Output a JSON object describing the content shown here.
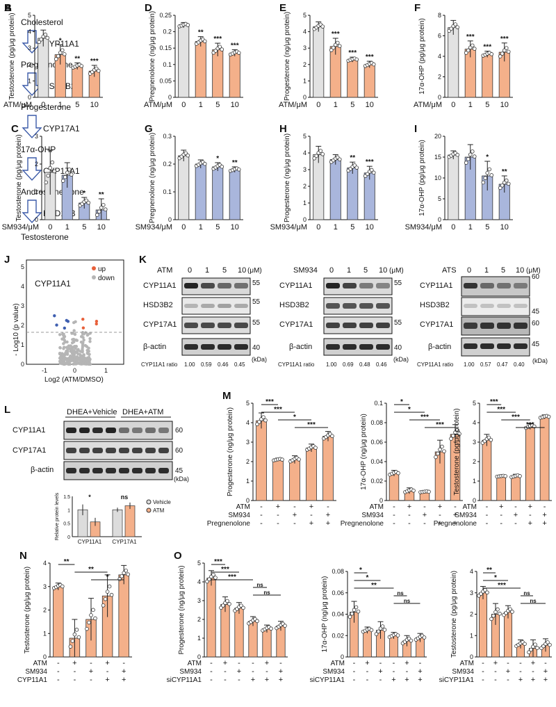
{
  "figure": {
    "pathway": {
      "label": "A",
      "steps": [
        "Cholesterol",
        "Pregnenolone",
        "Progesterone",
        "17α-OHP",
        "Androstenedione",
        "Testosterone"
      ],
      "enzymes": [
        "CYP11A1",
        "HSD3B2",
        "CYP17A1",
        "CYP17A1",
        "HSD17B"
      ]
    },
    "volcano": {
      "label": "J",
      "title": "CYP11A1",
      "ylabel": "- Log10 (p value)",
      "xlabel": "Log2 (ATM/DMSO)",
      "legend": [
        "up",
        "down"
      ],
      "ticks_x": [
        "-1",
        "0",
        "1"
      ],
      "ticks_y": [
        "0",
        "1",
        "2",
        "3",
        "4",
        "5"
      ],
      "colors": {
        "up": "#e8603a",
        "down": "#3f5fb0",
        "ns": "#b5b5b5"
      }
    },
    "western_k": {
      "label": "K",
      "unit_conc": "(μM)",
      "unit_kda": "(kDa)",
      "ratio_label": "CYP11A1 ratio",
      "panels": [
        {
          "drug": "ATM",
          "doses": [
            "0",
            "1",
            "5",
            "10"
          ],
          "bands": [
            "CYP11A1",
            "HSD3B2",
            "CYP17A1",
            "β-actin"
          ],
          "kda": [
            "55",
            "55",
            "55",
            "40"
          ],
          "ratios": [
            "1.00",
            "0.59",
            "0.46",
            "0.45"
          ]
        },
        {
          "drug": "SM934",
          "doses": [
            "0",
            "1",
            "5",
            "10"
          ],
          "bands": [
            "CYP11A1",
            "HSD3B2",
            "CYP17A1",
            "β-actin"
          ],
          "kda": [
            "55",
            "",
            "55",
            "40"
          ],
          "ratios": [
            "1.00",
            "0.69",
            "0.48",
            "0.46"
          ]
        },
        {
          "drug": "ATS",
          "doses": [
            "0",
            "1",
            "5",
            "10"
          ],
          "bands": [
            "CYP11A1",
            "HSD3B2",
            "CYP17A1",
            "β-actin"
          ],
          "kda": [
            "60",
            "45",
            "60",
            "45"
          ],
          "ratios": [
            "1.00",
            "0.57",
            "0.47",
            "0.40"
          ]
        }
      ]
    },
    "western_l": {
      "label": "L",
      "groups": [
        "DHEA+Vehicle",
        "DHEA+ATM"
      ],
      "bands": [
        "CYP11A1",
        "CYP17A1",
        "β-actin"
      ],
      "kda": [
        "60",
        "60",
        "45"
      ],
      "unit_kda": "(kDa)"
    }
  },
  "chart_data": [
    {
      "panel": "B",
      "type": "bar",
      "ylabel": "Testosterone (pg/μg protein)",
      "xlabel": "ATM/μM",
      "categories": [
        "0",
        "1",
        "5",
        "10"
      ],
      "values": [
        3.6,
        2.6,
        1.9,
        1.6
      ],
      "errors": [
        0.5,
        0.6,
        0.2,
        0.35
      ],
      "sig": [
        "",
        "*",
        "**",
        "***"
      ],
      "ylim": [
        0,
        5
      ],
      "yticks": [
        0,
        1,
        2,
        3,
        4,
        5
      ],
      "colors": [
        "#e2e2e2",
        "#f4b08a",
        "#f4b08a",
        "#f4b08a"
      ]
    },
    {
      "panel": "D",
      "type": "bar",
      "ylabel": "Pregnenolone (ng/μg protein)",
      "xlabel": "ATM/μM",
      "categories": [
        "0",
        "1",
        "5",
        "10"
      ],
      "values": [
        0.22,
        0.17,
        0.145,
        0.135
      ],
      "errors": [
        0.008,
        0.015,
        0.02,
        0.01
      ],
      "sig": [
        "",
        "**",
        "***",
        "***"
      ],
      "ylim": [
        0,
        0.25
      ],
      "yticks": [
        0,
        0.05,
        0.1,
        0.15,
        0.2,
        0.25
      ],
      "colors": [
        "#e2e2e2",
        "#f4b08a",
        "#f4b08a",
        "#f4b08a"
      ]
    },
    {
      "panel": "E",
      "type": "bar",
      "ylabel": "Progesterone (ng/μg protein)",
      "xlabel": "ATM/μM",
      "categories": [
        "0",
        "1",
        "5",
        "10"
      ],
      "values": [
        4.3,
        3.1,
        2.3,
        2.0
      ],
      "errors": [
        0.3,
        0.5,
        0.15,
        0.2
      ],
      "sig": [
        "",
        "***",
        "***",
        "***"
      ],
      "ylim": [
        0,
        5
      ],
      "yticks": [
        0,
        1,
        2,
        3,
        4,
        5
      ],
      "colors": [
        "#e2e2e2",
        "#f4b08a",
        "#f4b08a",
        "#f4b08a"
      ]
    },
    {
      "panel": "F",
      "type": "bar",
      "ylabel": "17α-OHP (pg/μg protein)",
      "xlabel": "ATM/μM",
      "categories": [
        "0",
        "1",
        "5",
        "10"
      ],
      "values": [
        6.8,
        4.7,
        4.2,
        4.4
      ],
      "errors": [
        0.7,
        0.8,
        0.3,
        0.9
      ],
      "sig": [
        "",
        "***",
        "***",
        "***"
      ],
      "ylim": [
        0,
        8
      ],
      "yticks": [
        0,
        2,
        4,
        6,
        8
      ],
      "colors": [
        "#e2e2e2",
        "#f4b08a",
        "#f4b08a",
        "#f4b08a"
      ]
    },
    {
      "panel": "C",
      "type": "bar",
      "ylabel": "Testosterone (pg/μg protein)",
      "xlabel": "SM934/μM",
      "categories": [
        "0",
        "1",
        "5",
        "10"
      ],
      "values": [
        1.7,
        1.6,
        0.6,
        0.35
      ],
      "errors": [
        0.8,
        0.45,
        0.2,
        0.4
      ],
      "sig": [
        "",
        "",
        "*",
        "**"
      ],
      "ylim": [
        0,
        3
      ],
      "yticks": [
        0,
        1,
        2,
        3
      ],
      "colors": [
        "#e2e2e2",
        "#a9b6dc",
        "#a9b6dc",
        "#a9b6dc"
      ]
    },
    {
      "panel": "G",
      "type": "bar",
      "ylabel": "Pregnenolone (ng/μg protein)",
      "xlabel": "SM934/μM",
      "categories": [
        "0",
        "1",
        "5",
        "10"
      ],
      "values": [
        0.23,
        0.2,
        0.19,
        0.18
      ],
      "errors": [
        0.02,
        0.015,
        0.015,
        0.01
      ],
      "sig": [
        "",
        "",
        "*",
        "**"
      ],
      "ylim": [
        0,
        0.3
      ],
      "yticks": [
        0,
        0.1,
        0.2,
        0.3
      ],
      "colors": [
        "#e2e2e2",
        "#a9b6dc",
        "#a9b6dc",
        "#a9b6dc"
      ]
    },
    {
      "panel": "H",
      "type": "bar",
      "ylabel": "Progesterone (ng/μg protein)",
      "xlabel": "SM934/μM",
      "categories": [
        "0",
        "1",
        "5",
        "10"
      ],
      "values": [
        3.9,
        3.6,
        3.1,
        2.8
      ],
      "errors": [
        0.5,
        0.3,
        0.35,
        0.4
      ],
      "sig": [
        "",
        "",
        "**",
        "***"
      ],
      "ylim": [
        0,
        5
      ],
      "yticks": [
        0,
        1,
        2,
        3,
        4,
        5
      ],
      "colors": [
        "#e2e2e2",
        "#a9b6dc",
        "#a9b6dc",
        "#a9b6dc"
      ]
    },
    {
      "panel": "I",
      "type": "bar",
      "ylabel": "17α-OHP (pg/μg protein)",
      "xlabel": "SM934/μM",
      "categories": [
        "0",
        "1",
        "5",
        "10"
      ],
      "values": [
        15.5,
        15,
        10.5,
        8.5
      ],
      "errors": [
        1,
        3,
        3.5,
        2
      ],
      "sig": [
        "",
        "",
        "*",
        "**"
      ],
      "ylim": [
        0,
        20
      ],
      "yticks": [
        0,
        5,
        10,
        15,
        20
      ],
      "colors": [
        "#e2e2e2",
        "#a9b6dc",
        "#a9b6dc",
        "#a9b6dc"
      ]
    },
    {
      "panel": "L-inset",
      "type": "bar",
      "ylabel": "Relative protein levels",
      "categories": [
        "CYP11A1",
        "CYP17A1"
      ],
      "series": [
        {
          "name": "Vehicle",
          "values": [
            1.0,
            1.0
          ],
          "errors": [
            0.2,
            0.08
          ],
          "color": "#dcdcdc"
        },
        {
          "name": "ATM",
          "values": [
            0.55,
            1.15
          ],
          "errors": [
            0.15,
            0.12
          ],
          "color": "#f4b08a"
        }
      ],
      "sig": [
        "*",
        "ns"
      ],
      "ylim": [
        0,
        1.5
      ],
      "yticks": [
        0,
        0.5,
        1,
        1.5
      ],
      "legend": [
        "Vehicle",
        "ATM"
      ]
    },
    {
      "panel": "M",
      "type": "bar",
      "ylabel": "Progesterone (ng/μg protein)",
      "values": [
        4.1,
        2.1,
        2.1,
        2.7,
        3.3
      ],
      "errors": [
        0.4,
        0.08,
        0.2,
        0.2,
        0.25
      ],
      "ylim": [
        0,
        5
      ],
      "yticks": [
        0,
        1,
        2,
        3,
        4,
        5
      ],
      "conditions": {
        "ATM": [
          "-",
          "+",
          "-",
          "+",
          "-"
        ],
        "SM934": [
          "-",
          "-",
          "+",
          "-",
          "+"
        ],
        "Pregnenolone": [
          "-",
          "-",
          "-",
          "+",
          "+"
        ]
      },
      "brackets": [
        {
          "a": 0,
          "b": 1,
          "label": "***"
        },
        {
          "a": 0,
          "b": 2,
          "label": "***"
        },
        {
          "a": 1,
          "b": 3,
          "label": "*"
        },
        {
          "a": 2,
          "b": 4,
          "label": "***"
        }
      ],
      "color": "#f4b08a"
    },
    {
      "panel": "M2",
      "type": "bar",
      "ylabel": "17α-OHP (ng/μg protein)",
      "values": [
        0.028,
        0.01,
        0.009,
        0.05,
        0.068
      ],
      "errors": [
        0.003,
        0.003,
        0.001,
        0.012,
        0.01
      ],
      "ylim": [
        0,
        0.1
      ],
      "yticks": [
        0,
        0.02,
        0.04,
        0.06,
        0.08,
        0.1
      ],
      "conditions": {
        "ATM": [
          "-",
          "+",
          "-",
          "+",
          "-"
        ],
        "SM934": [
          "-",
          "-",
          "+",
          "-",
          "+"
        ],
        "Pregnenolone": [
          "-",
          "-",
          "-",
          "+",
          "+"
        ]
      },
      "brackets": [
        {
          "a": 0,
          "b": 1,
          "label": "*"
        },
        {
          "a": 0,
          "b": 2,
          "label": "*"
        },
        {
          "a": 1,
          "b": 3,
          "label": "***"
        },
        {
          "a": 2,
          "b": 4,
          "label": "***"
        }
      ],
      "color": "#f4b08a"
    },
    {
      "panel": "M3",
      "type": "bar",
      "ylabel": "Testosterone (pg/μg protein)",
      "values": [
        3.1,
        1.25,
        1.25,
        3.8,
        4.3
      ],
      "errors": [
        0.3,
        0.05,
        0.1,
        0.15,
        0.1
      ],
      "ylim": [
        0,
        5
      ],
      "yticks": [
        0,
        1,
        2,
        3,
        4,
        5
      ],
      "conditions": {
        "ATM": [
          "-",
          "+",
          "-",
          "+",
          "-"
        ],
        "SM934": [
          "-",
          "-",
          "+",
          "-",
          "+"
        ],
        "Pregnenolone": [
          "-",
          "-",
          "-",
          "+",
          "+"
        ]
      },
      "brackets": [
        {
          "a": 0,
          "b": 1,
          "label": "***"
        },
        {
          "a": 0,
          "b": 2,
          "label": "***"
        },
        {
          "a": 1,
          "b": 3,
          "label": "***"
        },
        {
          "a": 2,
          "b": 4,
          "label": "***"
        }
      ],
      "color": "#f4b08a"
    },
    {
      "panel": "N",
      "type": "bar",
      "ylabel": "Testosterone (pg/μg protein)",
      "values": [
        3.0,
        0.8,
        1.6,
        2.6,
        3.5
      ],
      "errors": [
        0.15,
        0.8,
        0.9,
        0.9,
        0.4
      ],
      "ylim": [
        0,
        4
      ],
      "yticks": [
        0,
        1,
        2,
        3,
        4
      ],
      "conditions": {
        "ATM": [
          "-",
          "+",
          "-",
          "+",
          "-"
        ],
        "SM934": [
          "-",
          "-",
          "+",
          "-",
          "+"
        ],
        "CYP11A1": [
          "-",
          "-",
          "-",
          "+",
          "+"
        ]
      },
      "brackets": [
        {
          "a": 0,
          "b": 1,
          "label": "**"
        },
        {
          "a": 1,
          "b": 3,
          "label": "**"
        },
        {
          "a": 2,
          "b": 4,
          "label": "*"
        }
      ],
      "color": "#f4b08a"
    },
    {
      "panel": "O",
      "type": "bar",
      "ylabel": "Progesterone (ng/μg protein)",
      "values": [
        4.2,
        2.8,
        2.6,
        1.9,
        1.5,
        1.65
      ],
      "errors": [
        0.4,
        0.4,
        0.3,
        0.25,
        0.2,
        0.25
      ],
      "ylim": [
        0,
        5
      ],
      "yticks": [
        0,
        1,
        2,
        3,
        4,
        5
      ],
      "conditions": {
        "ATM": [
          "-",
          "+",
          "-",
          "-",
          "+",
          "-"
        ],
        "SM934": [
          "-",
          "-",
          "+",
          "-",
          "-",
          "+"
        ],
        "siCYP11A1": [
          "-",
          "-",
          "-",
          "+",
          "+",
          "+"
        ]
      },
      "brackets": [
        {
          "a": 0,
          "b": 1,
          "label": "***"
        },
        {
          "a": 0,
          "b": 2,
          "label": "***"
        },
        {
          "a": 0,
          "b": 3,
          "label": "***"
        },
        {
          "a": 3,
          "b": 4,
          "label": "ns"
        },
        {
          "a": 3,
          "b": 5,
          "label": "ns"
        }
      ],
      "color": "#f4b08a"
    },
    {
      "panel": "O2",
      "type": "bar",
      "ylabel": "17α-OHP (ng/μg protein)",
      "values": [
        0.042,
        0.025,
        0.025,
        0.02,
        0.015,
        0.018
      ],
      "errors": [
        0.01,
        0.003,
        0.008,
        0.003,
        0.005,
        0.004
      ],
      "ylim": [
        0,
        0.08
      ],
      "yticks": [
        0,
        0.02,
        0.04,
        0.06,
        0.08
      ],
      "conditions": {
        "ATM": [
          "-",
          "+",
          "-",
          "-",
          "+",
          "-"
        ],
        "SM934": [
          "-",
          "-",
          "+",
          "-",
          "-",
          "+"
        ],
        "siCYP11A1": [
          "-",
          "-",
          "-",
          "+",
          "+",
          "+"
        ]
      },
      "brackets": [
        {
          "a": 0,
          "b": 1,
          "label": "*"
        },
        {
          "a": 0,
          "b": 2,
          "label": "*"
        },
        {
          "a": 0,
          "b": 3,
          "label": "**"
        },
        {
          "a": 3,
          "b": 4,
          "label": "ns"
        },
        {
          "a": 3,
          "b": 5,
          "label": "ns"
        }
      ],
      "color": "#f4b08a"
    },
    {
      "panel": "O3",
      "type": "bar",
      "ylabel": "Testosterone (pg/μg protein)",
      "values": [
        3.0,
        2.0,
        2.1,
        0.6,
        0.4,
        0.55
      ],
      "errors": [
        0.3,
        0.5,
        0.3,
        0.2,
        0.4,
        0.3
      ],
      "ylim": [
        0,
        4
      ],
      "yticks": [
        0,
        1,
        2,
        3,
        4
      ],
      "conditions": {
        "ATM": [
          "-",
          "+",
          "-",
          "-",
          "+",
          "-"
        ],
        "SM934": [
          "-",
          "-",
          "+",
          "-",
          "-",
          "+"
        ],
        "siCYP11A1": [
          "-",
          "-",
          "-",
          "+",
          "+",
          "+"
        ]
      },
      "brackets": [
        {
          "a": 0,
          "b": 1,
          "label": "**"
        },
        {
          "a": 0,
          "b": 2,
          "label": "*"
        },
        {
          "a": 0,
          "b": 3,
          "label": "***"
        },
        {
          "a": 3,
          "b": 4,
          "label": "ns"
        },
        {
          "a": 3,
          "b": 5,
          "label": "ns"
        }
      ],
      "color": "#f4b08a"
    }
  ]
}
